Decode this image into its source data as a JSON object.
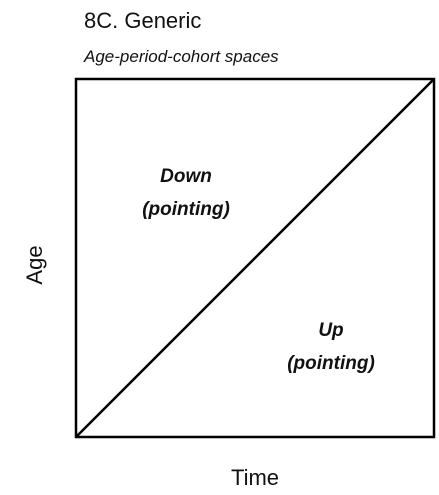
{
  "header": {
    "title": "8C. Generic",
    "subtitle": "Age-period-cohort spaces"
  },
  "axes": {
    "x_label": "Time",
    "y_label": "Age"
  },
  "regions": [
    {
      "lines": [
        "Down",
        "(pointing)"
      ]
    },
    {
      "lines": [
        "Up",
        "(pointing)"
      ]
    }
  ]
}
